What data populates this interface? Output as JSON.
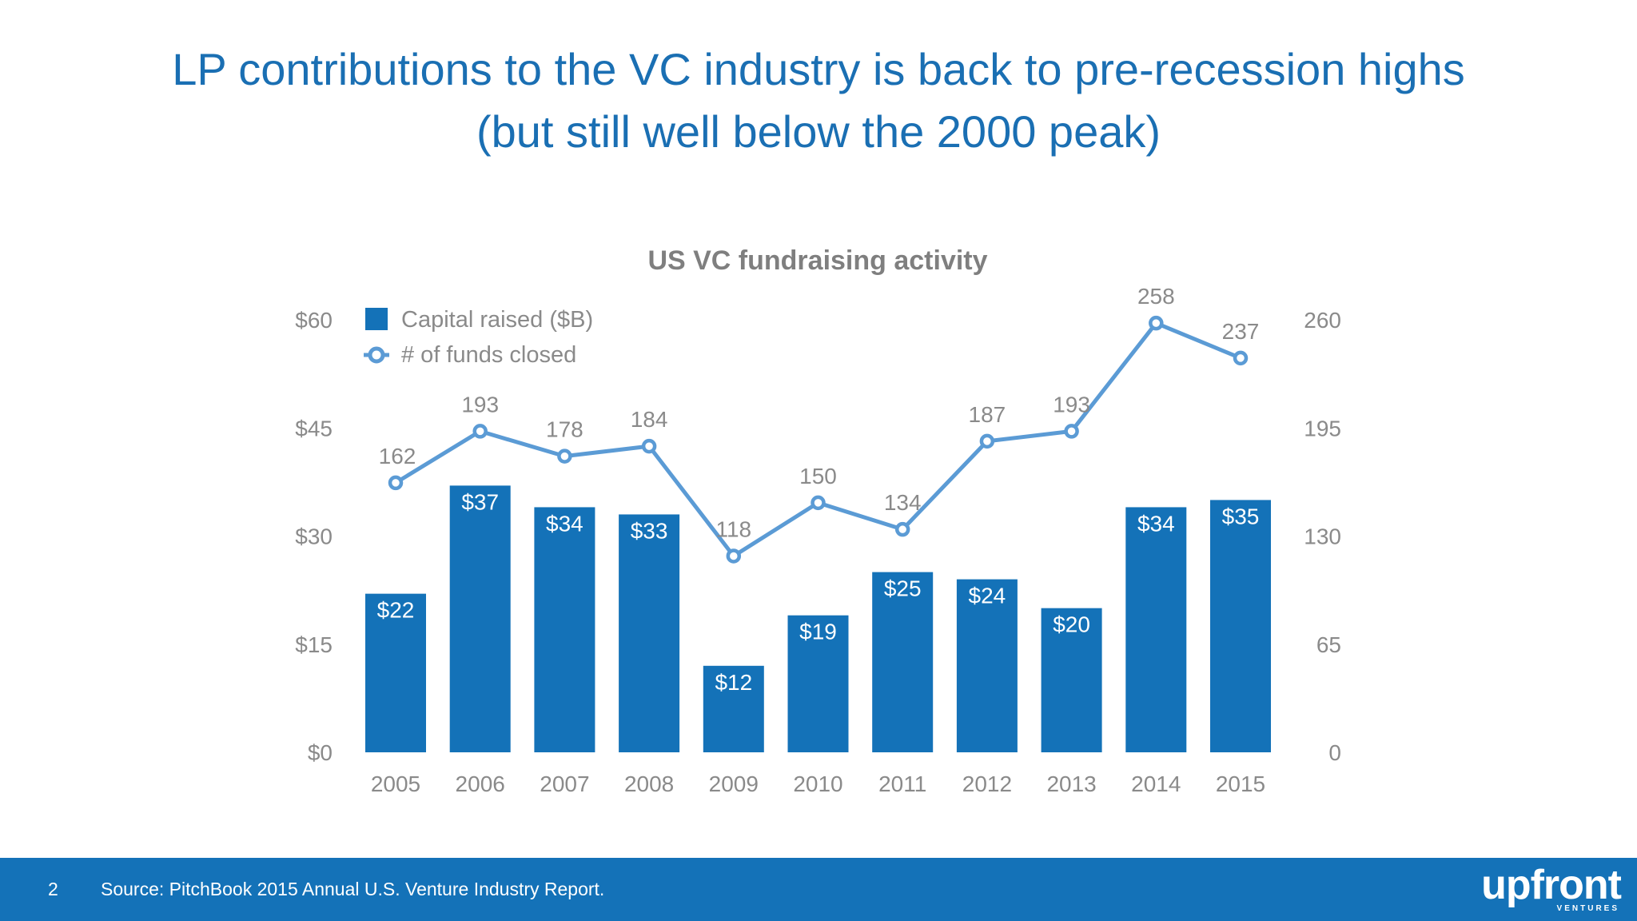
{
  "slide": {
    "title_line1": "LP contributions to the VC industry is back to pre-recession highs",
    "title_line2": "(but still well below the 2000 peak)",
    "page_number": "2",
    "source": "Source: PitchBook 2015 Annual U.S. Venture Industry Report.",
    "logo_text": "upfront",
    "logo_subtext": "VENTURES"
  },
  "colors": {
    "title": "#1a6fb3",
    "bar": "#1472b8",
    "line": "#5b9bd5",
    "axis_text": "#8a8a8a",
    "chart_title": "#7f7f7f",
    "footer": "#1472b8"
  },
  "chart_data": {
    "type": "bar+line",
    "title": "US VC fundraising activity",
    "categories": [
      "2005",
      "2006",
      "2007",
      "2008",
      "2009",
      "2010",
      "2011",
      "2012",
      "2013",
      "2014",
      "2015"
    ],
    "series": [
      {
        "name": "Capital raised ($B)",
        "type": "bar",
        "axis": "left",
        "values": [
          22,
          37,
          34,
          33,
          12,
          19,
          25,
          24,
          20,
          34,
          35
        ],
        "labels": [
          "$22",
          "$37",
          "$34",
          "$33",
          "$12",
          "$19",
          "$25",
          "$24",
          "$20",
          "$34",
          "$35"
        ]
      },
      {
        "name": "# of funds closed",
        "type": "line",
        "axis": "right",
        "values": [
          162,
          193,
          178,
          184,
          118,
          150,
          134,
          187,
          193,
          258,
          237
        ],
        "labels": [
          "162",
          "193",
          "178",
          "184",
          "118",
          "150",
          "134",
          "187",
          "193",
          "258",
          "237"
        ]
      }
    ],
    "y_left": {
      "min": 0,
      "max": 60,
      "ticks": [
        "$0",
        "$15",
        "$30",
        "$45",
        "$60"
      ]
    },
    "y_right": {
      "min": 0,
      "max": 260,
      "ticks": [
        "0",
        "65",
        "130",
        "195",
        "260"
      ]
    },
    "legend_position": "top-left",
    "grid": false
  }
}
